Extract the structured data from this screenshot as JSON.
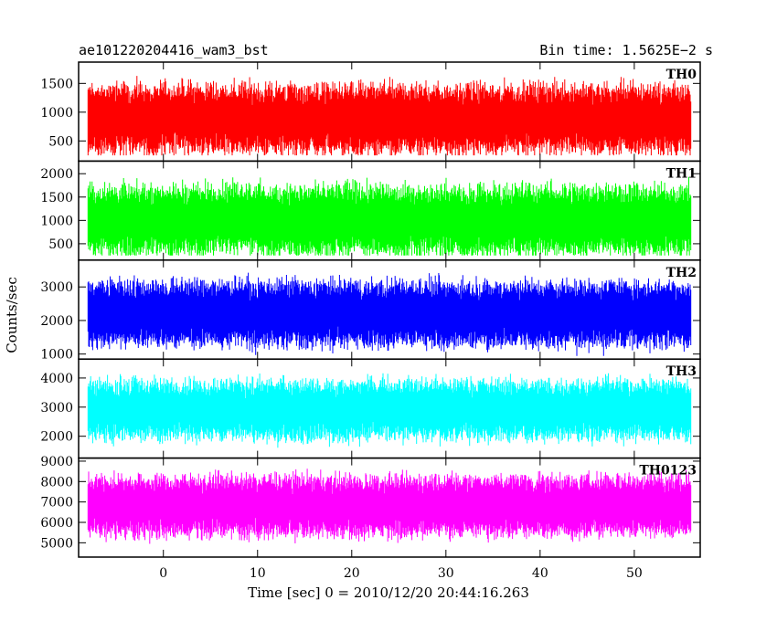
{
  "chart_data": {
    "type": "line",
    "title": "ae101220204416_wam3_bst",
    "subtitle": "Bin time: 1.5625E−2 s",
    "xlabel": "Time [sec] 0 = 2010/12/20 20:44:16.263",
    "ylabel": "Counts/sec",
    "xlim": [
      -9,
      57
    ],
    "x_range_data": [
      -8,
      56
    ],
    "x_ticks": [
      0,
      10,
      20,
      30,
      40,
      50
    ],
    "panels": [
      {
        "name": "TH0",
        "color": "#ff0000",
        "ylim": [
          150,
          1870
        ],
        "y_ticks": [
          500,
          1000,
          1500
        ],
        "baseline": 880,
        "spread": 520,
        "low": 250,
        "high": 1850
      },
      {
        "name": "TH1",
        "color": "#00ff00",
        "ylim": [
          150,
          2270
        ],
        "y_ticks": [
          500,
          1000,
          1500,
          2000
        ],
        "baseline": 1000,
        "spread": 650,
        "low": 250,
        "high": 2200
      },
      {
        "name": "TH2",
        "color": "#0000ff",
        "ylim": [
          850,
          3800
        ],
        "y_ticks": [
          1000,
          2000,
          3000
        ],
        "baseline": 2200,
        "spread": 850,
        "low": 900,
        "high": 3750
      },
      {
        "name": "TH3",
        "color": "#00ffff",
        "ylim": [
          1250,
          4650
        ],
        "y_ticks": [
          2000,
          3000,
          4000
        ],
        "baseline": 2900,
        "spread": 900,
        "low": 1350,
        "high": 4550
      },
      {
        "name": "TH0123",
        "color": "#ff00ff",
        "ylim": [
          4300,
          9150
        ],
        "y_ticks": [
          5000,
          6000,
          7000,
          8000,
          9000
        ],
        "baseline": 6800,
        "spread": 1300,
        "low": 4500,
        "high": 9050
      }
    ]
  }
}
